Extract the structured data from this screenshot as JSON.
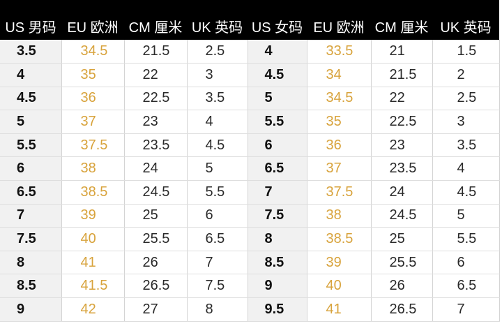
{
  "header": {
    "columns": [
      "US 男码",
      "EU 欧洲",
      "CM 厘米",
      "UK 英码",
      "US 女码",
      "EU 欧洲",
      "CM 厘米",
      "UK 英码"
    ]
  },
  "colors": {
    "header_bg": "#000000",
    "header_text": "#ffffff",
    "us_column_bg": "#f1f1f1",
    "eu_text": "#d8a33c",
    "body_text": "#2a2a2a"
  },
  "rows": [
    [
      "3.5",
      "34.5",
      "21.5",
      "2.5",
      "4",
      "33.5",
      "21",
      "1.5"
    ],
    [
      "4",
      "35",
      "22",
      "3",
      "4.5",
      "34",
      "21.5",
      "2"
    ],
    [
      "4.5",
      "36",
      "22.5",
      "3.5",
      "5",
      "34.5",
      "22",
      "2.5"
    ],
    [
      "5",
      "37",
      "23",
      "4",
      "5.5",
      "35",
      "22.5",
      "3"
    ],
    [
      "5.5",
      "37.5",
      "23.5",
      "4.5",
      "6",
      "36",
      "23",
      "3.5"
    ],
    [
      "6",
      "38",
      "24",
      "5",
      "6.5",
      "37",
      "23.5",
      "4"
    ],
    [
      "6.5",
      "38.5",
      "24.5",
      "5.5",
      "7",
      "37.5",
      "24",
      "4.5"
    ],
    [
      "7",
      "39",
      "25",
      "6",
      "7.5",
      "38",
      "24.5",
      "5"
    ],
    [
      "7.5",
      "40",
      "25.5",
      "6.5",
      "8",
      "38.5",
      "25",
      "5.5"
    ],
    [
      "8",
      "41",
      "26",
      "7",
      "8.5",
      "39",
      "25.5",
      "6"
    ],
    [
      "8.5",
      "41.5",
      "26.5",
      "7.5",
      "9",
      "40",
      "26",
      "6.5"
    ],
    [
      "9",
      "42",
      "27",
      "8",
      "9.5",
      "41",
      "26.5",
      "7"
    ]
  ]
}
